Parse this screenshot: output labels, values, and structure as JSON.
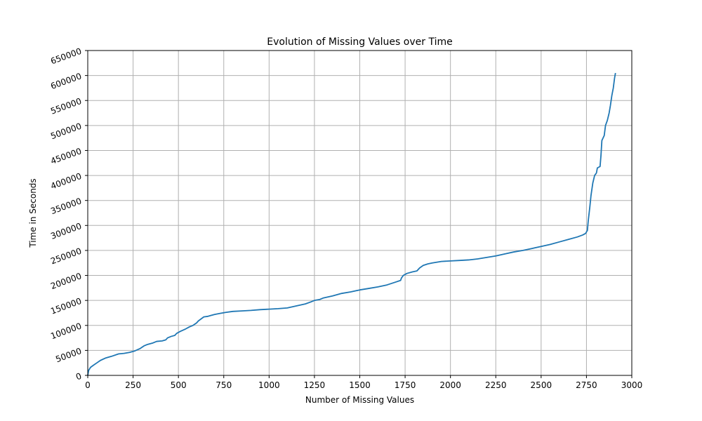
{
  "chart_data": {
    "type": "line",
    "title": "Evolution of Missing Values over Time",
    "xlabel": "Number of Missing Values",
    "ylabel": "Time in Seconds",
    "xlim": [
      0,
      3000
    ],
    "ylim": [
      0,
      650000
    ],
    "xticks": [
      0,
      250,
      500,
      750,
      1000,
      1250,
      1500,
      1750,
      2000,
      2250,
      2500,
      2750,
      3000
    ],
    "yticks": [
      0,
      50000,
      100000,
      150000,
      200000,
      250000,
      300000,
      350000,
      400000,
      450000,
      500000,
      550000,
      600000,
      650000
    ],
    "xtick_labels": [
      "0",
      "250",
      "500",
      "750",
      "1000",
      "1250",
      "1500",
      "1750",
      "2000",
      "2250",
      "2500",
      "2750",
      "3000"
    ],
    "ytick_labels": [
      "0",
      "50000",
      "100000",
      "150000",
      "200000",
      "250000",
      "300000",
      "350000",
      "400000",
      "450000",
      "500000",
      "550000",
      "600000",
      "650000"
    ],
    "ytick_rotation_deg": -20,
    "grid": true,
    "legend": "none",
    "series": [
      {
        "color": "#1f77b4",
        "points": [
          [
            0,
            0
          ],
          [
            5,
            10000
          ],
          [
            15,
            16000
          ],
          [
            30,
            20000
          ],
          [
            50,
            25000
          ],
          [
            70,
            30000
          ],
          [
            100,
            35000
          ],
          [
            130,
            38000
          ],
          [
            170,
            43000
          ],
          [
            200,
            44000
          ],
          [
            230,
            46000
          ],
          [
            260,
            49000
          ],
          [
            290,
            54000
          ],
          [
            310,
            59000
          ],
          [
            330,
            62000
          ],
          [
            360,
            65000
          ],
          [
            380,
            68000
          ],
          [
            410,
            69000
          ],
          [
            430,
            71000
          ],
          [
            440,
            75000
          ],
          [
            460,
            78000
          ],
          [
            480,
            80000
          ],
          [
            490,
            84000
          ],
          [
            510,
            88000
          ],
          [
            540,
            93000
          ],
          [
            560,
            97000
          ],
          [
            580,
            100000
          ],
          [
            600,
            105000
          ],
          [
            610,
            109000
          ],
          [
            625,
            113000
          ],
          [
            640,
            117000
          ],
          [
            660,
            118000
          ],
          [
            680,
            120000
          ],
          [
            700,
            122000
          ],
          [
            730,
            124000
          ],
          [
            760,
            126000
          ],
          [
            800,
            128000
          ],
          [
            850,
            129000
          ],
          [
            900,
            130000
          ],
          [
            950,
            131500
          ],
          [
            1000,
            132500
          ],
          [
            1050,
            133500
          ],
          [
            1100,
            135000
          ],
          [
            1150,
            139000
          ],
          [
            1200,
            143000
          ],
          [
            1230,
            147000
          ],
          [
            1250,
            150000
          ],
          [
            1280,
            152000
          ],
          [
            1300,
            155000
          ],
          [
            1350,
            159000
          ],
          [
            1400,
            164000
          ],
          [
            1450,
            167000
          ],
          [
            1500,
            171000
          ],
          [
            1550,
            174000
          ],
          [
            1600,
            177000
          ],
          [
            1650,
            181000
          ],
          [
            1700,
            187000
          ],
          [
            1725,
            190000
          ],
          [
            1730,
            195000
          ],
          [
            1740,
            200000
          ],
          [
            1760,
            204000
          ],
          [
            1790,
            207000
          ],
          [
            1815,
            209000
          ],
          [
            1830,
            215000
          ],
          [
            1850,
            220000
          ],
          [
            1875,
            223000
          ],
          [
            1900,
            225000
          ],
          [
            1950,
            228000
          ],
          [
            2000,
            229000
          ],
          [
            2050,
            230000
          ],
          [
            2100,
            231000
          ],
          [
            2150,
            233000
          ],
          [
            2200,
            236000
          ],
          [
            2250,
            239000
          ],
          [
            2300,
            243000
          ],
          [
            2350,
            247000
          ],
          [
            2400,
            250000
          ],
          [
            2450,
            254000
          ],
          [
            2500,
            258000
          ],
          [
            2550,
            262000
          ],
          [
            2600,
            267000
          ],
          [
            2650,
            272000
          ],
          [
            2700,
            277000
          ],
          [
            2730,
            281000
          ],
          [
            2745,
            284000
          ],
          [
            2755,
            290000
          ],
          [
            2760,
            310000
          ],
          [
            2768,
            335000
          ],
          [
            2775,
            360000
          ],
          [
            2785,
            385000
          ],
          [
            2795,
            400000
          ],
          [
            2805,
            405000
          ],
          [
            2810,
            415000
          ],
          [
            2825,
            418000
          ],
          [
            2830,
            440000
          ],
          [
            2835,
            470000
          ],
          [
            2848,
            480000
          ],
          [
            2855,
            500000
          ],
          [
            2865,
            510000
          ],
          [
            2875,
            525000
          ],
          [
            2882,
            540000
          ],
          [
            2890,
            560000
          ],
          [
            2898,
            575000
          ],
          [
            2905,
            595000
          ],
          [
            2910,
            605000
          ]
        ]
      }
    ]
  }
}
